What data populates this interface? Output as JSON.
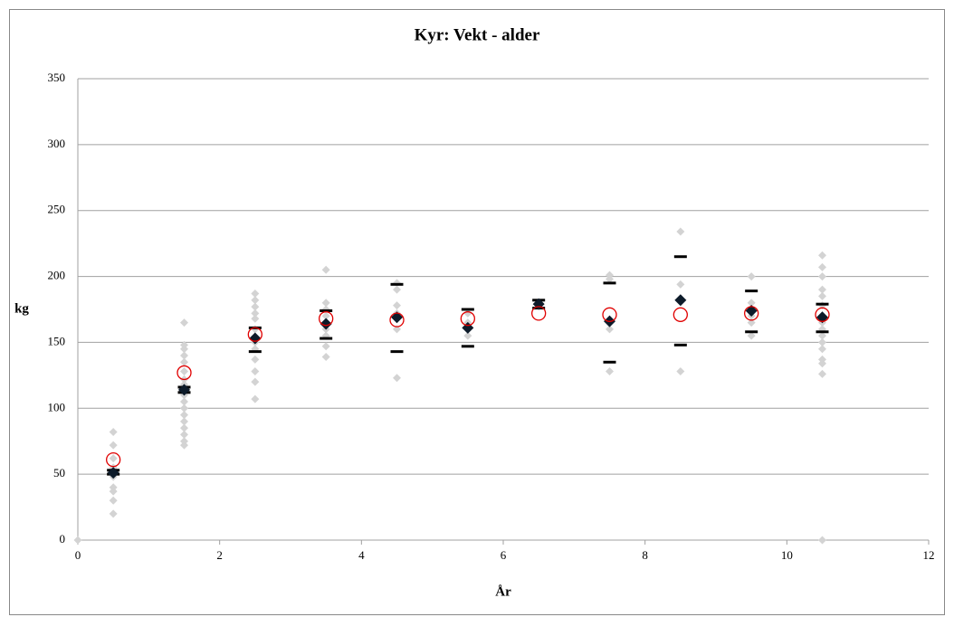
{
  "chart_data": {
    "type": "scatter",
    "title": "Kyr: Vekt - alder",
    "xlabel": "År",
    "ylabel": "kg",
    "xlim": [
      0,
      12
    ],
    "xticks": [
      0,
      2,
      4,
      6,
      8,
      10,
      12
    ],
    "ylim": [
      0,
      350
    ],
    "yticks": [
      0,
      50,
      100,
      150,
      200,
      250,
      300,
      350
    ],
    "grid": true,
    "series": [
      {
        "marker": "diamond",
        "color": "#d3d3d3",
        "x": [
          0,
          0.5,
          0.5,
          0.5,
          0.5,
          0.5,
          0.5,
          0.5,
          0.5,
          0.5,
          0.5,
          1.5,
          1.5,
          1.5,
          1.5,
          1.5,
          1.5,
          1.5,
          1.5,
          1.5,
          1.5,
          1.5,
          1.5,
          1.5,
          1.5,
          1.5,
          1.5,
          1.5,
          1.5,
          2.5,
          2.5,
          2.5,
          2.5,
          2.5,
          2.5,
          2.5,
          2.5,
          2.5,
          2.5,
          2.5,
          2.5,
          3.5,
          3.5,
          3.5,
          3.5,
          3.5,
          3.5,
          3.5,
          3.5,
          3.5,
          4.5,
          4.5,
          4.5,
          4.5,
          4.5,
          4.5,
          4.5,
          5.5,
          5.5,
          5.5,
          5.5,
          6.5,
          6.5,
          7.5,
          7.5,
          7.5,
          7.5,
          7.5,
          8.5,
          8.5,
          8.5,
          9.5,
          9.5,
          9.5,
          9.5,
          9.5,
          9.5,
          10.5,
          10.5,
          10.5,
          10.5,
          10.5,
          10.5,
          10.5,
          10.5,
          10.5,
          10.5,
          10.5,
          10.5,
          10.5,
          10.5,
          10.5,
          10.5
        ],
        "values": [
          0,
          82,
          72,
          62,
          55,
          50,
          48,
          40,
          37,
          30,
          20,
          165,
          148,
          145,
          140,
          135,
          128,
          122,
          118,
          115,
          110,
          105,
          100,
          95,
          90,
          85,
          80,
          75,
          72,
          187,
          182,
          177,
          172,
          168,
          160,
          150,
          145,
          137,
          128,
          120,
          107,
          205,
          180,
          175,
          170,
          165,
          160,
          155,
          147,
          139,
          195,
          190,
          178,
          172,
          168,
          160,
          123,
          172,
          165,
          160,
          155,
          180,
          178,
          201,
          198,
          165,
          160,
          128,
          234,
          194,
          128,
          200,
          180,
          175,
          170,
          165,
          155,
          216,
          207,
          200,
          190,
          185,
          178,
          170,
          165,
          160,
          155,
          150,
          145,
          137,
          134,
          126,
          0
        ]
      },
      {
        "marker": "dash",
        "color": "#000000",
        "x": [
          0.5,
          1.5,
          2.5,
          3.5,
          4.5,
          5.5,
          6.5,
          7.5,
          8.5,
          9.5,
          10.5
        ],
        "values": [
          53,
          116,
          161,
          174,
          194,
          175,
          182,
          195,
          215,
          189,
          179
        ]
      },
      {
        "marker": "dash",
        "color": "#000000",
        "x": [
          0.5,
          1.5,
          2.5,
          3.5,
          4.5,
          5.5,
          6.5,
          7.5,
          8.5,
          9.5,
          10.5
        ],
        "values": [
          50,
          112,
          143,
          153,
          143,
          147,
          176,
          135,
          148,
          158,
          158
        ]
      },
      {
        "marker": "diamond",
        "color": "#0d1b2a",
        "x": [
          0.5,
          1.5,
          2.5,
          3.5,
          4.5,
          5.5,
          6.5,
          7.5,
          8.5,
          9.5,
          10.5
        ],
        "values": [
          51,
          114,
          153,
          164,
          169,
          161,
          179,
          166,
          182,
          174,
          169
        ]
      },
      {
        "marker": "circle",
        "color": "#e00000",
        "x": [
          0.5,
          1.5,
          2.5,
          3.5,
          4.5,
          5.5,
          6.5,
          7.5,
          8.5,
          9.5,
          10.5
        ],
        "values": [
          61,
          127,
          156,
          168,
          167,
          168,
          172,
          171,
          171,
          172,
          171
        ]
      }
    ]
  }
}
